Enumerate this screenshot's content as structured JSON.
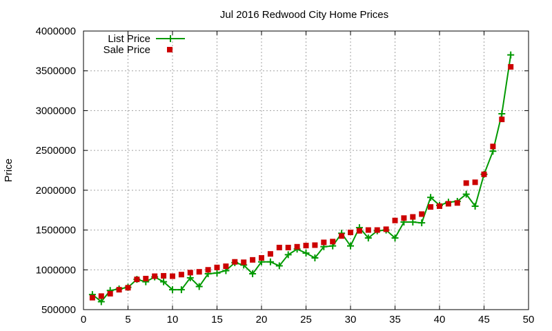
{
  "chart_data": {
    "type": "line",
    "title": "Jul 2016 Redwood City Home Prices",
    "xlabel": "",
    "ylabel": "Price",
    "xlim": [
      0,
      50
    ],
    "ylim": [
      500000,
      4000000
    ],
    "xticks": [
      0,
      5,
      10,
      15,
      20,
      25,
      30,
      35,
      40,
      45,
      50
    ],
    "yticks": [
      500000,
      1000000,
      1500000,
      2000000,
      2500000,
      3000000,
      3500000,
      4000000
    ],
    "grid": true,
    "legend_position": "top-left",
    "series": [
      {
        "name": "List Price",
        "style": "line-plus",
        "color": "#009900",
        "x": [
          1,
          2,
          3,
          4,
          5,
          6,
          7,
          8,
          9,
          10,
          11,
          12,
          13,
          14,
          15,
          16,
          17,
          18,
          19,
          20,
          21,
          22,
          23,
          24,
          25,
          26,
          27,
          28,
          29,
          30,
          31,
          32,
          33,
          34,
          35,
          36,
          37,
          38,
          39,
          40,
          41,
          42,
          43,
          44,
          45,
          46,
          47,
          48
        ],
        "y": [
          690000,
          600000,
          740000,
          760000,
          780000,
          880000,
          850000,
          910000,
          850000,
          750000,
          750000,
          900000,
          790000,
          950000,
          960000,
          990000,
          1090000,
          1060000,
          950000,
          1100000,
          1100000,
          1050000,
          1190000,
          1260000,
          1210000,
          1150000,
          1290000,
          1300000,
          1460000,
          1300000,
          1530000,
          1400000,
          1490000,
          1500000,
          1400000,
          1600000,
          1600000,
          1590000,
          1910000,
          1810000,
          1850000,
          1860000,
          1950000,
          1800000,
          2200000,
          2490000,
          2960000,
          3700000
        ]
      },
      {
        "name": "Sale Price",
        "style": "square",
        "color": "#cc0000",
        "x": [
          1,
          2,
          3,
          4,
          5,
          6,
          7,
          8,
          9,
          10,
          11,
          12,
          13,
          14,
          15,
          16,
          17,
          18,
          19,
          20,
          21,
          22,
          23,
          24,
          25,
          26,
          27,
          28,
          29,
          30,
          31,
          32,
          33,
          34,
          35,
          36,
          37,
          38,
          39,
          40,
          41,
          42,
          43,
          44,
          45,
          46,
          47,
          48
        ],
        "y": [
          650000,
          670000,
          700000,
          750000,
          775000,
          880000,
          890000,
          920000,
          925000,
          920000,
          940000,
          965000,
          975000,
          1000000,
          1030000,
          1045000,
          1100000,
          1095000,
          1125000,
          1150000,
          1200000,
          1280000,
          1280000,
          1290000,
          1305000,
          1310000,
          1345000,
          1355000,
          1425000,
          1470000,
          1490000,
          1500000,
          1500000,
          1510000,
          1620000,
          1650000,
          1665000,
          1700000,
          1790000,
          1800000,
          1830000,
          1840000,
          2090000,
          2100000,
          2200000,
          2550000,
          2890000,
          3550000
        ]
      }
    ]
  }
}
